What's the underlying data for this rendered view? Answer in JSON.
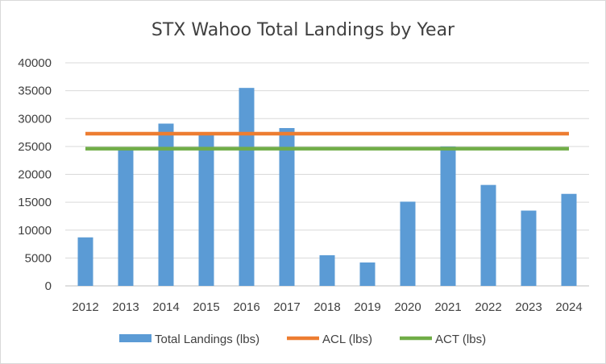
{
  "chart_data": {
    "type": "bar",
    "title": "STX Wahoo Total Landings by Year",
    "xlabel": "",
    "ylabel": "",
    "categories": [
      "2012",
      "2013",
      "2014",
      "2015",
      "2016",
      "2017",
      "2018",
      "2019",
      "2020",
      "2021",
      "2022",
      "2023",
      "2024"
    ],
    "series": [
      {
        "name": "Total Landings (lbs)",
        "kind": "bar",
        "color": "#5b9bd5",
        "values": [
          8700,
          24800,
          29100,
          27100,
          35500,
          28300,
          5500,
          4200,
          15100,
          25000,
          18100,
          13500,
          16500
        ]
      },
      {
        "name": "ACL (lbs)",
        "kind": "line",
        "color": "#ed7d31",
        "values": [
          27300,
          27300,
          27300,
          27300,
          27300,
          27300,
          27300,
          27300,
          27300,
          27300,
          27300,
          27300,
          27300
        ]
      },
      {
        "name": "ACT (lbs)",
        "kind": "line",
        "color": "#70ad47",
        "values": [
          24600,
          24600,
          24600,
          24600,
          24600,
          24600,
          24600,
          24600,
          24600,
          24600,
          24600,
          24600,
          24600
        ]
      }
    ],
    "ylim": [
      0,
      40000
    ],
    "yticks": [
      0,
      5000,
      10000,
      15000,
      20000,
      25000,
      30000,
      35000,
      40000
    ],
    "ytick_labels": [
      "0",
      "5000",
      "10000",
      "15000",
      "20000",
      "25000",
      "30000",
      "35000",
      "40000"
    ],
    "grid": true,
    "legend_position": "bottom",
    "gridline_color": "#d9d9d9",
    "axis_color": "#bfbfbf"
  }
}
